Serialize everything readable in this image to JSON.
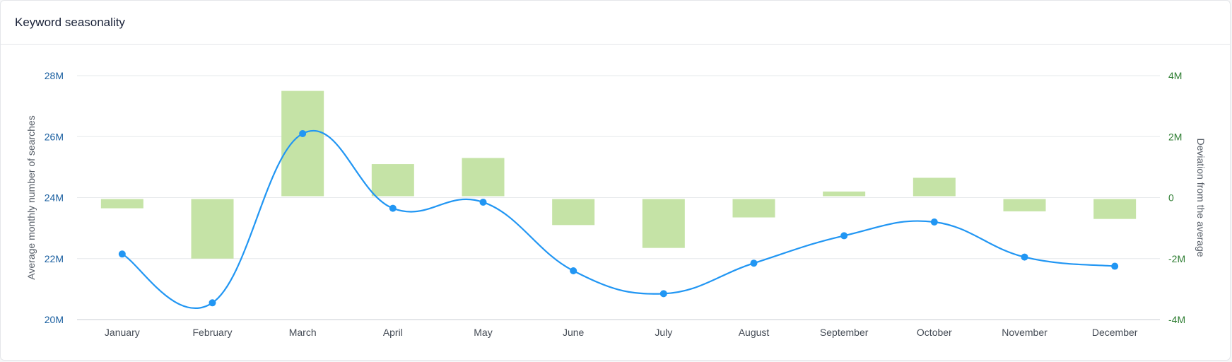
{
  "header": {
    "title": "Keyword seasonality"
  },
  "chart_data": {
    "type": "bar",
    "title": "",
    "categories": [
      "January",
      "February",
      "March",
      "April",
      "May",
      "June",
      "July",
      "August",
      "September",
      "October",
      "November",
      "December"
    ],
    "series": [
      {
        "name": "Average monthly number of searches",
        "type": "line",
        "axis": "left",
        "color": "#2196f3",
        "values": [
          22.15,
          20.55,
          26.1,
          23.65,
          23.85,
          21.6,
          20.85,
          21.85,
          22.75,
          23.2,
          22.05,
          21.75
        ]
      },
      {
        "name": "Deviation from the average",
        "type": "bar",
        "axis": "right",
        "color": "#c5e3a6",
        "values": [
          -0.35,
          -2.0,
          3.5,
          1.1,
          1.3,
          -0.9,
          -1.65,
          -0.65,
          0.2,
          0.65,
          -0.45,
          -0.7
        ]
      }
    ],
    "yaxis_left": {
      "label": "Average monthly number of searches",
      "min": 20,
      "max": 28,
      "ticks": [
        20,
        22,
        24,
        26,
        28
      ],
      "tick_labels": [
        "20M",
        "22M",
        "24M",
        "26M",
        "28M"
      ],
      "color": "#1a5fa0"
    },
    "yaxis_right": {
      "label": "Deviation from the average",
      "min": -4,
      "max": 4,
      "ticks": [
        -4,
        -2,
        0,
        2,
        4
      ],
      "tick_labels": [
        "-4M",
        "-2M",
        "0",
        "2M",
        "4M"
      ],
      "color": "#2e7d32"
    },
    "grid": true,
    "legend": "none"
  }
}
